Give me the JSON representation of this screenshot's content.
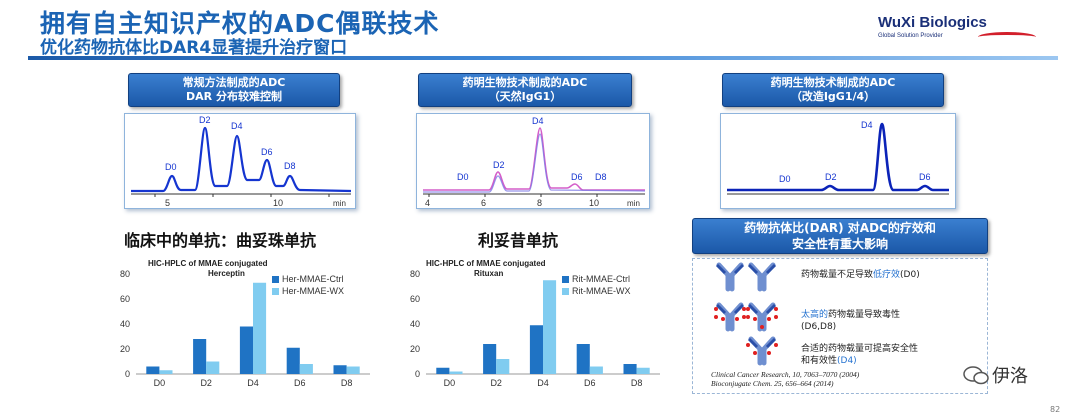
{
  "header": {
    "title": "拥有自主知识产权的ADC偶联技术",
    "subtitle": "优化药物抗体比DAR4显著提升治疗窗口",
    "logo_name": "WuXi Biologics",
    "logo_tagline": "Global Solution Provider"
  },
  "hplc_panels": [
    {
      "label_line1": "常规方法制成的ADC",
      "label_line2": "DAR 分布较难控制",
      "peaks": [
        "D0",
        "D2",
        "D4",
        "D6",
        "D8"
      ],
      "ticks": [
        "5",
        "10"
      ],
      "axis_unit": "min"
    },
    {
      "label_line1": "药明生物技术制成的ADC",
      "label_line2": "（天然IgG1）",
      "peaks": [
        "D0",
        "D2",
        "D4",
        "D6",
        "D8"
      ],
      "ticks": [
        "4",
        "6",
        "8",
        "10"
      ],
      "axis_unit": "min"
    },
    {
      "label_line1": "药明生物技术制成的ADC",
      "label_line2": "（改造IgG1/4）",
      "peaks": [
        "D0",
        "D2",
        "D4",
        "D6"
      ],
      "ticks": [],
      "axis_unit": ""
    }
  ],
  "sections": {
    "left_title": "临床中的单抗：曲妥珠单抗",
    "mid_title": "利妥昔单抗"
  },
  "chart_data": [
    {
      "type": "bar",
      "title": "HIC-HPLC of MMAE conjugated",
      "subtitle": "Herceptin",
      "categories": [
        "D0",
        "D2",
        "D4",
        "D6",
        "D8"
      ],
      "series": [
        {
          "name": "Her-MMAE-Ctrl",
          "values": [
            6,
            28,
            38,
            21,
            7
          ]
        },
        {
          "name": "Her-MMAE-WX",
          "values": [
            3,
            10,
            73,
            8,
            6
          ]
        }
      ],
      "ylim": [
        0,
        80
      ],
      "yticks": [
        "0",
        "20",
        "40",
        "60",
        "80"
      ],
      "colors": [
        "#1f73c4",
        "#80ccf0"
      ],
      "legend": "top-right"
    },
    {
      "type": "bar",
      "title": "HIC-HPLC of MMAE conjugated",
      "subtitle": "Rituxan",
      "categories": [
        "D0",
        "D2",
        "D4",
        "D6",
        "D8"
      ],
      "series": [
        {
          "name": "Rit-MMAE-Ctrl",
          "values": [
            5,
            24,
            39,
            24,
            8
          ]
        },
        {
          "name": "Rit-MMAE-WX",
          "values": [
            2,
            12,
            75,
            6,
            5
          ]
        }
      ],
      "ylim": [
        0,
        80
      ],
      "yticks": [
        "0",
        "20",
        "40",
        "60",
        "80"
      ],
      "colors": [
        "#1f73c4",
        "#80ccf0"
      ],
      "legend": "top-right"
    }
  ],
  "info": {
    "box_line1": "药物抗体比(DAR) 对ADC的疗效和",
    "box_line2": "安全性有重大影响",
    "row1_prefix": "药物载量不足导致",
    "row1_highlight": "低疗效",
    "row1_suffix": "(D0)",
    "row2_highlight": "太高的",
    "row2_rest": "药物载量导致毒性",
    "row2_line2": "(D6,D8)",
    "row3_line1": "合适的药物载量可提高安全性",
    "row3_line2_prefix": "和有效性",
    "row3_line2_highlight": "(D4)",
    "ref1": "Clinical Cancer Research, 10, 7063–7070 (2004)",
    "ref2": "Bioconjugate Chem. 25, 656–664 (2014)"
  },
  "footer": {
    "wechat_name": "伊洛",
    "page": "82"
  }
}
